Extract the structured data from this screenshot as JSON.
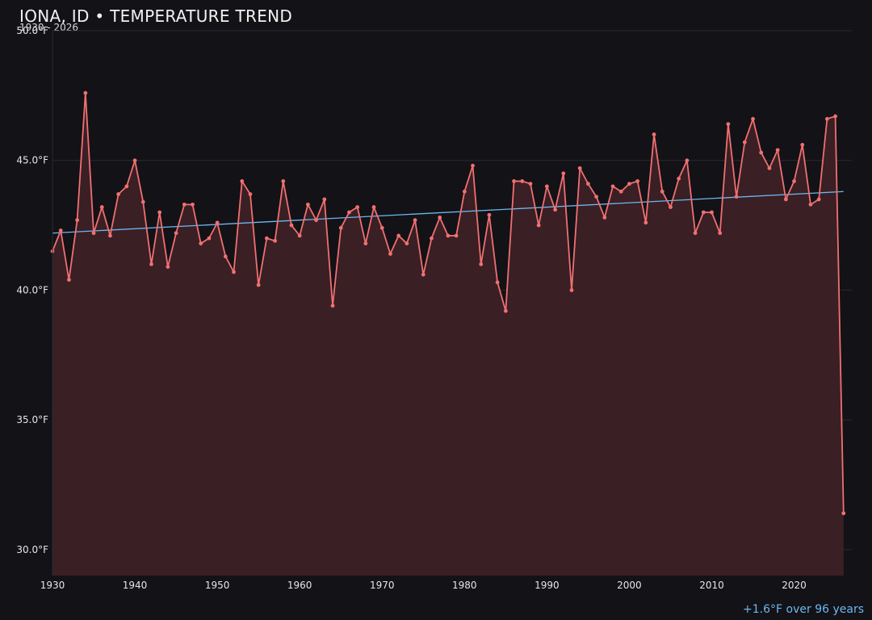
{
  "header": {
    "title": "IONA, ID • TEMPERATURE TREND",
    "subtitle": "1930 - 2026"
  },
  "footer": {
    "trend_note": "+1.6°F over 96 years"
  },
  "colors": {
    "background": "#131217",
    "series": "#f07070",
    "area_fill": "#3a1f25",
    "trend": "#6cb8f0",
    "grid": "#2a2930",
    "tick_label": "#e6e6e6"
  },
  "chart_data": {
    "type": "line",
    "title": "IONA, ID • TEMPERATURE TREND",
    "subtitle": "1930 - 2026",
    "xlabel": "",
    "ylabel": "",
    "xlim": [
      1930,
      1927
    ],
    "ylim": [
      29,
      50
    ],
    "y_ticks": [
      30,
      35,
      40,
      45,
      50
    ],
    "y_tick_labels": [
      "30.0°F",
      "35.0°F",
      "40.0°F",
      "45.0°F",
      "50.0°F"
    ],
    "x_ticks": [
      1930,
      1940,
      1950,
      1960,
      1970,
      1980,
      1990,
      2000,
      2010,
      2020
    ],
    "x_tick_labels": [
      "1930",
      "1940",
      "1950",
      "1960",
      "1970",
      "1980",
      "1990",
      "2000",
      "2010",
      "2020"
    ],
    "grid": true,
    "area_fill": true,
    "x": [
      1930,
      1931,
      1932,
      1933,
      1934,
      1935,
      1936,
      1937,
      1938,
      1939,
      1940,
      1941,
      1942,
      1943,
      1944,
      1945,
      1946,
      1947,
      1948,
      1949,
      1950,
      1951,
      1952,
      1953,
      1954,
      1955,
      1956,
      1957,
      1958,
      1959,
      1960,
      1961,
      1962,
      1963,
      1964,
      1965,
      1966,
      1967,
      1968,
      1969,
      1970,
      1971,
      1972,
      1973,
      1974,
      1975,
      1976,
      1977,
      1978,
      1979,
      1980,
      1981,
      1982,
      1983,
      1984,
      1985,
      1986,
      1987,
      1988,
      1989,
      1990,
      1991,
      1992,
      1993,
      1994,
      1995,
      1996,
      1997,
      1998,
      1999,
      2000,
      2001,
      2002,
      2003,
      2004,
      2005,
      2006,
      2007,
      2008,
      2009,
      2010,
      2011,
      2012,
      2013,
      2014,
      2015,
      2016,
      2017,
      2018,
      2019,
      2020,
      2021,
      2022,
      2023,
      2024,
      2025,
      2026
    ],
    "series": [
      {
        "values": [
          41.5,
          42.3,
          40.4,
          42.7,
          47.6,
          42.2,
          43.2,
          42.1,
          43.7,
          44.0,
          45.0,
          43.4,
          41.0,
          43.0,
          40.9,
          42.2,
          43.3,
          43.3,
          41.8,
          42.0,
          42.6,
          41.3,
          40.7,
          44.2,
          43.7,
          40.2,
          42.0,
          41.9,
          44.2,
          42.5,
          42.1,
          43.3,
          42.7,
          43.5,
          39.4,
          42.4,
          43.0,
          43.2,
          41.8,
          43.2,
          42.4,
          41.4,
          42.1,
          41.8,
          42.7,
          40.6,
          42.0,
          42.8,
          42.1,
          42.1,
          43.8,
          44.8,
          41.0,
          42.9,
          40.3,
          39.2,
          44.2,
          44.2,
          44.1,
          42.5,
          44.0,
          43.1,
          44.5,
          40.0,
          44.7,
          44.1,
          43.6,
          42.8,
          44.0,
          43.8,
          44.1,
          44.2,
          42.6,
          46.0,
          43.8,
          43.2,
          44.3,
          45.0,
          42.2,
          43.0,
          43.0,
          42.2,
          46.4,
          43.6,
          45.7,
          46.6,
          45.3,
          44.7,
          45.4,
          43.5,
          44.2,
          45.6,
          43.3,
          43.5,
          46.6,
          46.7,
          31.4
        ]
      }
    ],
    "trend": {
      "label": "+1.6°F over 96 years",
      "start": [
        1930,
        42.2
      ],
      "end": [
        2026,
        43.8
      ]
    }
  }
}
